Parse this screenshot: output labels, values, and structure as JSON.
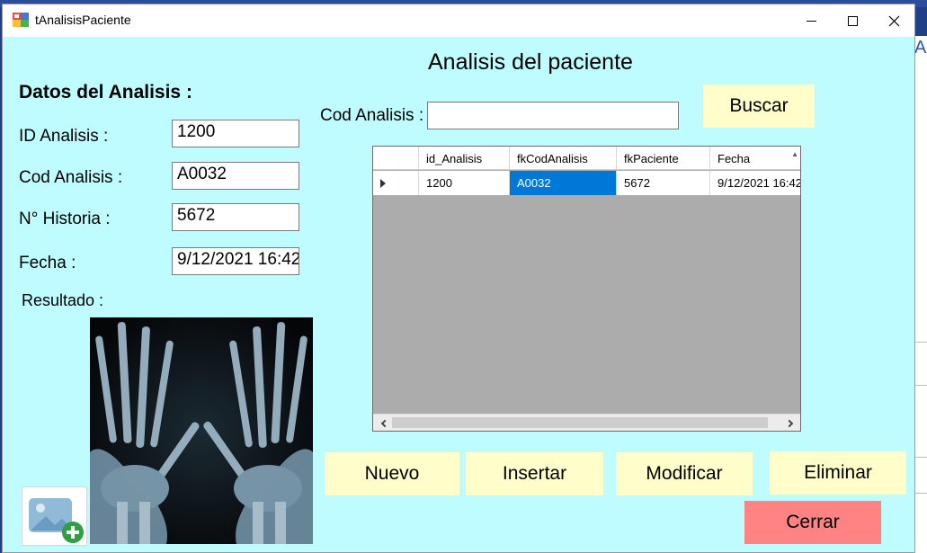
{
  "window": {
    "title": "tAnalisisPaciente"
  },
  "header": {
    "title": "Analisis del paciente"
  },
  "form": {
    "heading": "Datos del Analisis :",
    "fields": [
      {
        "label": "ID Analisis :",
        "value": "1200"
      },
      {
        "label": "Cod Analisis :",
        "value": "A0032"
      },
      {
        "label": "N° Historia :",
        "value": "5672"
      },
      {
        "label": "Fecha :",
        "value": "9/12/2021 16:42"
      }
    ],
    "result_label": "Resultado :"
  },
  "search": {
    "label": "Cod Analisis :",
    "value": "",
    "button_label": "Buscar"
  },
  "grid": {
    "columns": [
      "id_Analisis",
      "fkCodAnalisis",
      "fkPaciente",
      "Fecha"
    ],
    "rows": [
      {
        "cells": [
          "1200",
          "A0032",
          "5672",
          "9/12/2021 16:42"
        ],
        "selected_cell": 1
      }
    ]
  },
  "actions": {
    "nuevo": "Nuevo",
    "insertar": "Insertar",
    "modificar": "Modificar",
    "eliminar": "Eliminar",
    "cerrar": "Cerrar"
  },
  "icons": {
    "app": "app-icon",
    "minimize": "minimize-icon",
    "maximize": "maximize-icon",
    "close": "close-icon",
    "row_indicator": "row-pointer-icon",
    "add_image": "add-image-icon"
  },
  "colors": {
    "form_background": "#bffcff",
    "button_background": "#fffdc9",
    "close_button_background": "#ff8383",
    "selection": "#0078d7",
    "grid_empty": "#acacac"
  }
}
